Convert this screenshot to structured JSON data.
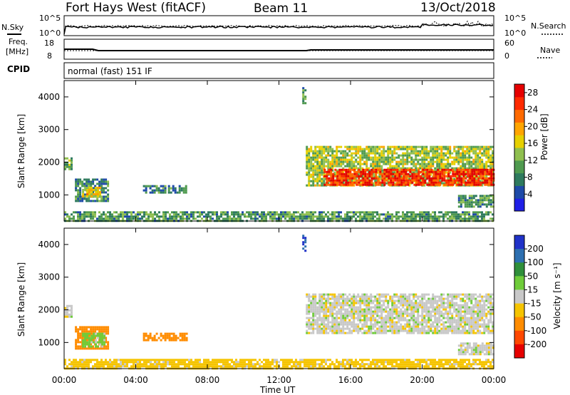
{
  "header": {
    "station": "Fort Hays West (fitACF)",
    "beam": "Beam 11",
    "date": "13/Oct/2018"
  },
  "noise_panel": {
    "left_label": "N.Sky",
    "left_ticks": [
      "10^5",
      "10^0"
    ],
    "right_label": "N.Search",
    "right_ticks": [
      "10^5",
      "10^0"
    ]
  },
  "freq_panel": {
    "left_label_1": "Freq.",
    "left_label_2": "[MHz]",
    "left_ticks": [
      "18",
      "8"
    ],
    "right_label": "Nave",
    "right_ticks": [
      "60",
      "0"
    ]
  },
  "cpid_panel": {
    "label": "CPID",
    "text": "normal (fast) 151 IF"
  },
  "power_panel": {
    "ylabel": "Slant Range [km]",
    "yticks": [
      "4000",
      "3000",
      "2000",
      "1000"
    ],
    "colorbar_label": "Power [dB]",
    "colorbar_ticks": [
      "28",
      "24",
      "20",
      "16",
      "12",
      "8",
      "4"
    ],
    "colors": [
      "#1f1fe6",
      "#1e4aa8",
      "#2e7a5e",
      "#4f9a4f",
      "#8fbf4f",
      "#e6d000",
      "#ffa500",
      "#ff6a00",
      "#ff2a00",
      "#e60000"
    ]
  },
  "velocity_panel": {
    "ylabel": "Slant Range [km]",
    "yticks": [
      "4000",
      "3000",
      "2000",
      "1000"
    ],
    "colorbar_label": "Velocity [m s⁻¹]",
    "colorbar_ticks": [
      "200",
      "100",
      "50",
      "15",
      "-15",
      "-50",
      "-100",
      "-200"
    ],
    "colors": [
      "#2032c8",
      "#2d6fb0",
      "#2f8f3a",
      "#6fcc3a",
      "#c8c8c8",
      "#f5c400",
      "#ff8c00",
      "#ff4800",
      "#e60000"
    ]
  },
  "xaxis": {
    "label": "Time UT",
    "ticks": [
      "00:00",
      "04:00",
      "08:00",
      "12:00",
      "16:00",
      "20:00",
      "00:00"
    ]
  },
  "chart_data": {
    "type": "heatmap",
    "x_unit": "hours UT",
    "xlim": [
      0,
      24
    ],
    "ylim": [
      200,
      4500
    ],
    "power_range_db": [
      0,
      30
    ],
    "velocity_range_ms": [
      -250,
      250
    ],
    "power_regions": [
      {
        "t": [
          0.0,
          0.4
        ],
        "r": [
          1800,
          2150
        ],
        "power": 12
      },
      {
        "t": [
          0.6,
          2.4
        ],
        "r": [
          800,
          1500
        ],
        "power": 8
      },
      {
        "t": [
          1.0,
          2.0
        ],
        "r": [
          950,
          1250
        ],
        "power": 18
      },
      {
        "t": [
          4.4,
          5.6
        ],
        "r": [
          1100,
          1300
        ],
        "power": 8
      },
      {
        "t": [
          5.8,
          6.8
        ],
        "r": [
          1100,
          1300
        ],
        "power": 8
      },
      {
        "t": [
          0.0,
          24.0
        ],
        "r": [
          200,
          500
        ],
        "power": 10
      },
      {
        "t": [
          13.3,
          13.5
        ],
        "r": [
          3800,
          4300
        ],
        "power": 10
      },
      {
        "t": [
          13.5,
          24.0
        ],
        "r": [
          1300,
          2500
        ],
        "power": 14
      },
      {
        "t": [
          14.5,
          24.0
        ],
        "r": [
          1300,
          1800
        ],
        "power": 26
      },
      {
        "t": [
          22.0,
          24.0
        ],
        "r": [
          650,
          1000
        ],
        "power": 10
      }
    ],
    "velocity_regions": [
      {
        "t": [
          0.0,
          0.4
        ],
        "r": [
          1800,
          2150
        ],
        "velocity": 0
      },
      {
        "t": [
          0.6,
          2.4
        ],
        "r": [
          800,
          1500
        ],
        "velocity": -80
      },
      {
        "t": [
          1.0,
          2.2
        ],
        "r": [
          900,
          1300
        ],
        "velocity": 30
      },
      {
        "t": [
          4.4,
          6.8
        ],
        "r": [
          1100,
          1300
        ],
        "velocity": -70
      },
      {
        "t": [
          0.0,
          24.0
        ],
        "r": [
          200,
          500
        ],
        "velocity": -30
      },
      {
        "t": [
          13.3,
          13.5
        ],
        "r": [
          3800,
          4300
        ],
        "velocity": 200
      },
      {
        "t": [
          13.5,
          24.0
        ],
        "r": [
          1300,
          2500
        ],
        "velocity": 0
      },
      {
        "t": [
          22.0,
          24.0
        ],
        "r": [
          650,
          1000
        ],
        "velocity": 0
      }
    ]
  }
}
